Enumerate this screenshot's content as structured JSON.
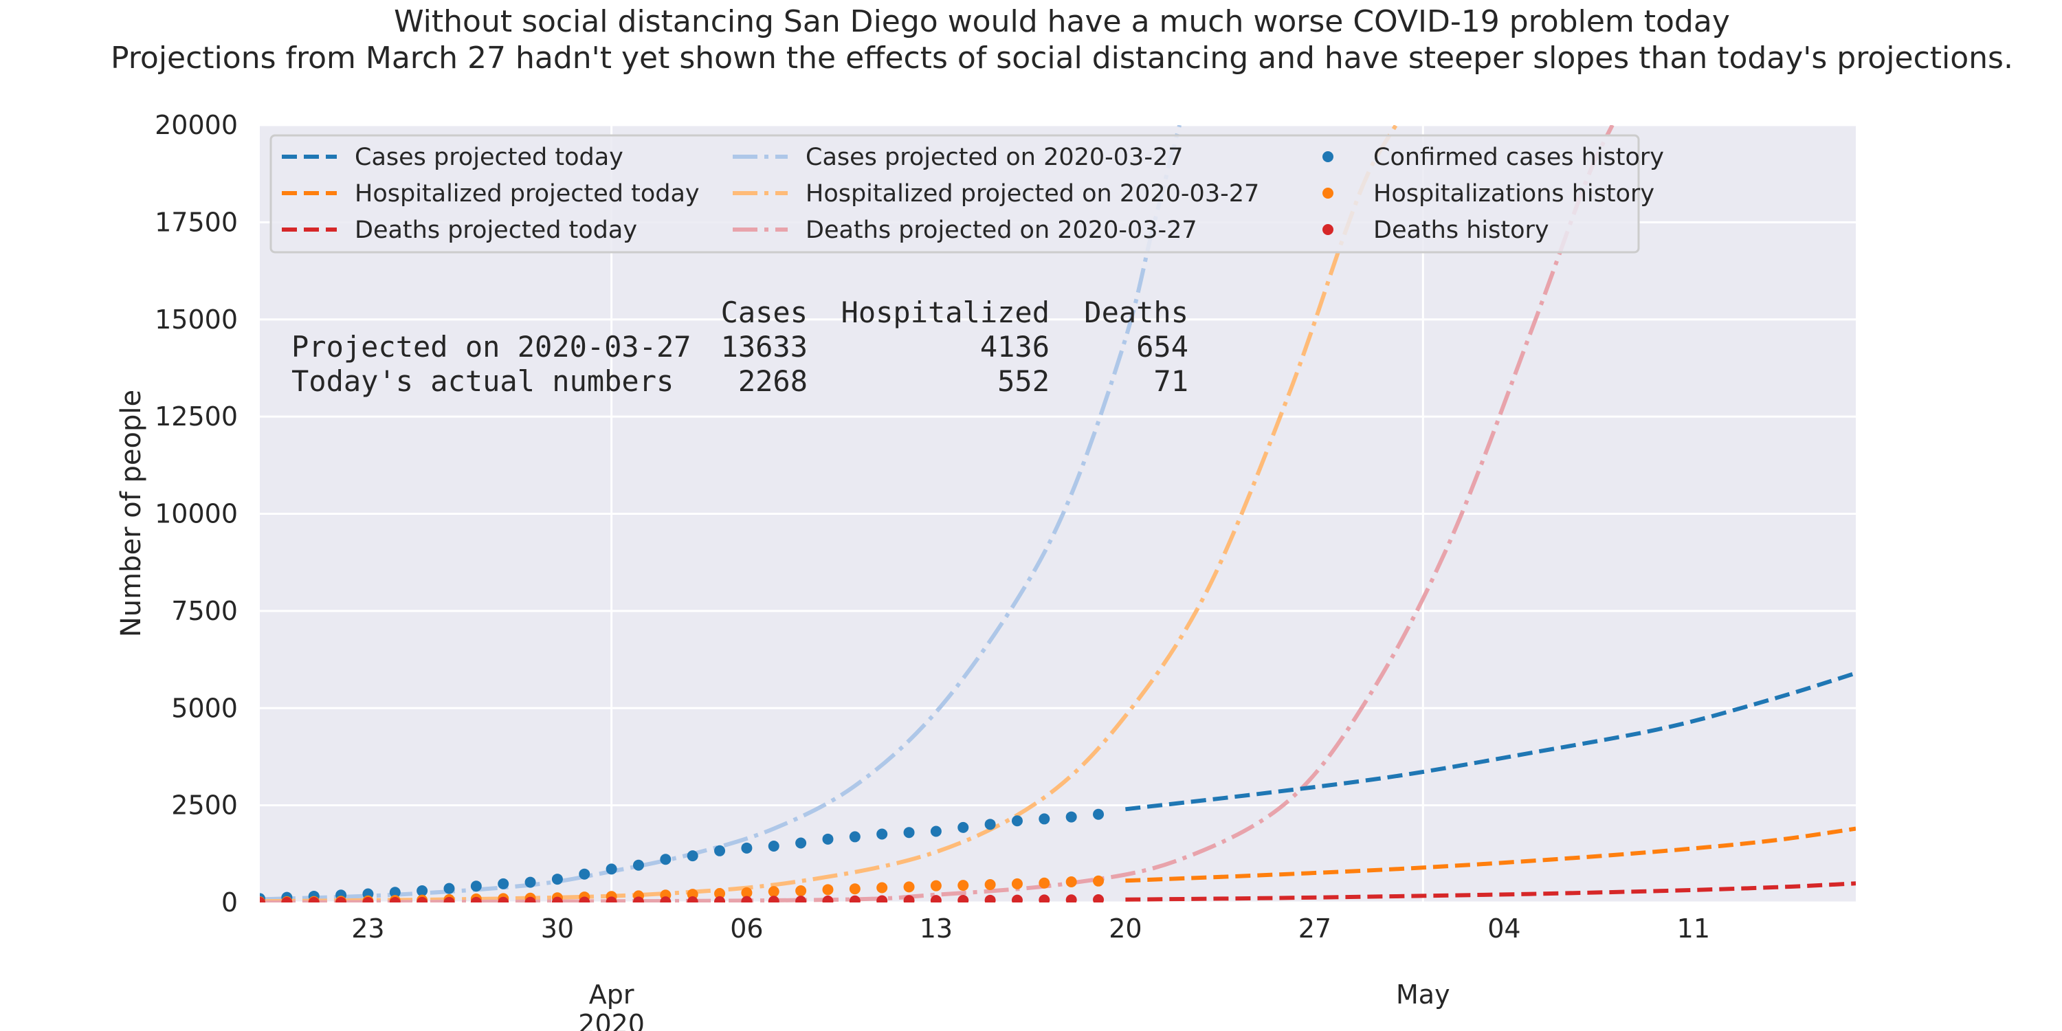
{
  "chart_data": {
    "type": "line",
    "title": "Without social distancing San Diego would have a much worse COVID-19 problem today",
    "subtitle": "Projections from March 27 hadn't yet shown the effects of social distancing and have steeper slopes than today's projections.",
    "xlabel": "",
    "ylabel": "Number of people",
    "xlim": [
      "2020-03-19",
      "2020-05-17"
    ],
    "ylim": [
      0,
      20000
    ],
    "grid": true,
    "legend_position": "top-left",
    "y_ticks": [
      "0",
      "2500",
      "5000",
      "7500",
      "10000",
      "12500",
      "15000",
      "17500",
      "20000"
    ],
    "x_ticks": [
      {
        "date": "2020-03-23",
        "label": "23"
      },
      {
        "date": "2020-03-30",
        "label": "30"
      },
      {
        "date": "2020-04-06",
        "label": "06"
      },
      {
        "date": "2020-04-13",
        "label": "13"
      },
      {
        "date": "2020-04-20",
        "label": "20"
      },
      {
        "date": "2020-04-27",
        "label": "27"
      },
      {
        "date": "2020-05-04",
        "label": "04"
      },
      {
        "date": "2020-05-11",
        "label": "11"
      }
    ],
    "x_major_ticks": [
      {
        "date": "2020-04-01",
        "label": "Apr",
        "year": "2020"
      },
      {
        "date": "2020-05-01",
        "label": "May"
      }
    ],
    "series": [
      {
        "name": "Cases projected today",
        "style": "dashed",
        "color": "#1f77b4",
        "x": [
          "2020-04-20",
          "2020-04-25",
          "2020-04-30",
          "2020-05-05",
          "2020-05-10",
          "2020-05-14",
          "2020-05-17"
        ],
        "y": [
          2400,
          2800,
          3250,
          3850,
          4500,
          5250,
          5900
        ]
      },
      {
        "name": "Hospitalized projected today",
        "style": "dashed",
        "color": "#ff7f0e",
        "x": [
          "2020-04-20",
          "2020-04-25",
          "2020-04-30",
          "2020-05-05",
          "2020-05-10",
          "2020-05-14",
          "2020-05-17"
        ],
        "y": [
          560,
          700,
          860,
          1070,
          1330,
          1600,
          1900
        ]
      },
      {
        "name": "Deaths projected today",
        "style": "dashed",
        "color": "#d62728",
        "x": [
          "2020-04-20",
          "2020-04-25",
          "2020-04-30",
          "2020-05-05",
          "2020-05-10",
          "2020-05-14",
          "2020-05-17"
        ],
        "y": [
          75,
          110,
          160,
          220,
          300,
          390,
          490
        ]
      },
      {
        "name": "Cases projected on 2020-03-27",
        "style": "dashdot",
        "color": "#aec7e8",
        "x": [
          "2020-03-19",
          "2020-03-24",
          "2020-03-29",
          "2020-04-01",
          "2020-04-04",
          "2020-04-07",
          "2020-04-10",
          "2020-04-13",
          "2020-04-16",
          "2020-04-18",
          "2020-04-20",
          "2020-04-21",
          "2020-04-22"
        ],
        "y": [
          80,
          200,
          450,
          800,
          1250,
          1900,
          3000,
          4900,
          7800,
          10500,
          14500,
          17300,
          20000
        ]
      },
      {
        "name": "Hospitalized projected on 2020-03-27",
        "style": "dashdot",
        "color": "#ffbb78",
        "x": [
          "2020-03-19",
          "2020-03-28",
          "2020-04-03",
          "2020-04-08",
          "2020-04-13",
          "2020-04-17",
          "2020-04-20",
          "2020-04-23",
          "2020-04-26",
          "2020-04-28",
          "2020-04-29",
          "2020-04-30"
        ],
        "y": [
          30,
          100,
          230,
          550,
          1300,
          2700,
          4800,
          8000,
          13000,
          17000,
          18800,
          20000
        ]
      },
      {
        "name": "Deaths projected on 2020-03-27",
        "style": "dashdot",
        "color": "#e8a3ab",
        "x": [
          "2020-03-19",
          "2020-04-08",
          "2020-04-13",
          "2020-04-18",
          "2020-04-22",
          "2020-04-26",
          "2020-04-29",
          "2020-05-02",
          "2020-05-05",
          "2020-05-07",
          "2020-05-08"
        ],
        "y": [
          0,
          60,
          200,
          500,
          1100,
          2600,
          5300,
          9300,
          14700,
          18500,
          20000
        ]
      },
      {
        "name": "Confirmed cases history",
        "style": "markers",
        "color": "#1f77b4",
        "x": [
          "2020-03-19",
          "2020-03-20",
          "2020-03-21",
          "2020-03-22",
          "2020-03-23",
          "2020-03-24",
          "2020-03-25",
          "2020-03-26",
          "2020-03-27",
          "2020-03-28",
          "2020-03-29",
          "2020-03-30",
          "2020-03-31",
          "2020-04-01",
          "2020-04-02",
          "2020-04-03",
          "2020-04-04",
          "2020-04-05",
          "2020-04-06",
          "2020-04-07",
          "2020-04-08",
          "2020-04-09",
          "2020-04-10",
          "2020-04-11",
          "2020-04-12",
          "2020-04-13",
          "2020-04-14",
          "2020-04-15",
          "2020-04-16",
          "2020-04-17",
          "2020-04-18",
          "2020-04-19"
        ],
        "y": [
          100,
          130,
          160,
          190,
          220,
          260,
          300,
          360,
          420,
          480,
          520,
          600,
          730,
          860,
          960,
          1110,
          1200,
          1330,
          1400,
          1450,
          1530,
          1630,
          1690,
          1760,
          1800,
          1830,
          1930,
          2010,
          2100,
          2150,
          2200,
          2268
        ]
      },
      {
        "name": "Hospitalizations history",
        "style": "markers",
        "color": "#ff7f0e",
        "x": [
          "2020-03-19",
          "2020-03-20",
          "2020-03-21",
          "2020-03-22",
          "2020-03-23",
          "2020-03-24",
          "2020-03-25",
          "2020-03-26",
          "2020-03-27",
          "2020-03-28",
          "2020-03-29",
          "2020-03-30",
          "2020-03-31",
          "2020-04-01",
          "2020-04-02",
          "2020-04-03",
          "2020-04-04",
          "2020-04-05",
          "2020-04-06",
          "2020-04-07",
          "2020-04-08",
          "2020-04-09",
          "2020-04-10",
          "2020-04-11",
          "2020-04-12",
          "2020-04-13",
          "2020-04-14",
          "2020-04-15",
          "2020-04-16",
          "2020-04-17",
          "2020-04-18",
          "2020-04-19"
        ],
        "y": [
          15,
          20,
          25,
          30,
          40,
          50,
          60,
          75,
          90,
          100,
          110,
          120,
          140,
          155,
          170,
          190,
          210,
          230,
          250,
          280,
          300,
          330,
          350,
          380,
          400,
          430,
          440,
          460,
          480,
          500,
          530,
          552
        ]
      },
      {
        "name": "Deaths history",
        "style": "markers",
        "color": "#d62728",
        "x": [
          "2020-03-19",
          "2020-03-20",
          "2020-03-21",
          "2020-03-22",
          "2020-03-23",
          "2020-03-24",
          "2020-03-25",
          "2020-03-26",
          "2020-03-27",
          "2020-03-28",
          "2020-03-29",
          "2020-03-30",
          "2020-03-31",
          "2020-04-01",
          "2020-04-02",
          "2020-04-03",
          "2020-04-04",
          "2020-04-05",
          "2020-04-06",
          "2020-04-07",
          "2020-04-08",
          "2020-04-09",
          "2020-04-10",
          "2020-04-11",
          "2020-04-12",
          "2020-04-13",
          "2020-04-14",
          "2020-04-15",
          "2020-04-16",
          "2020-04-17",
          "2020-04-18",
          "2020-04-19"
        ],
        "y": [
          0,
          0,
          0,
          0,
          1,
          1,
          2,
          3,
          3,
          4,
          5,
          6,
          8,
          10,
          12,
          15,
          18,
          20,
          25,
          30,
          33,
          38,
          40,
          44,
          48,
          50,
          53,
          56,
          60,
          63,
          66,
          71
        ]
      }
    ],
    "annotation_table": {
      "columns": [
        "",
        "Cases",
        "Hospitalized",
        "Deaths"
      ],
      "rows": [
        {
          "label": "Projected on 2020-03-27",
          "values": [
            "13633",
            "4136",
            "654"
          ]
        },
        {
          "label": "Today's actual numbers",
          "values": [
            "2268",
            "552",
            "71"
          ]
        }
      ]
    }
  }
}
